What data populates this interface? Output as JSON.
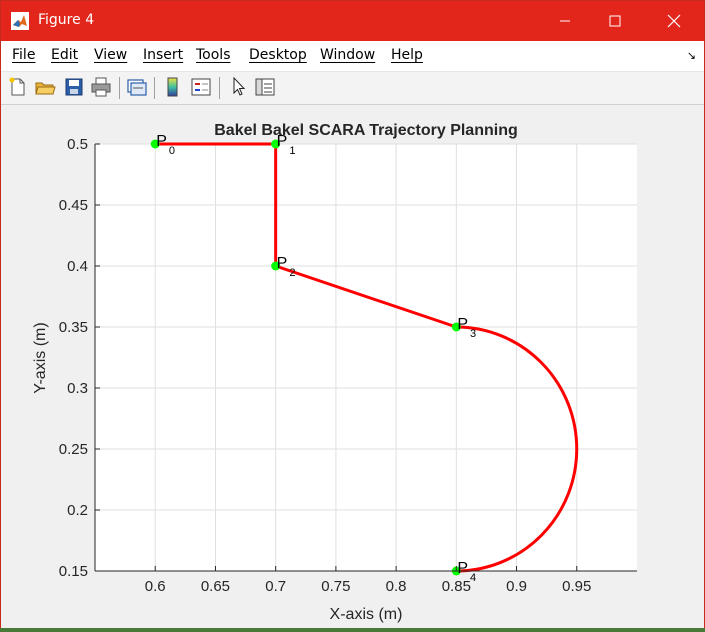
{
  "window": {
    "title": "Figure 4",
    "controls": [
      "minimize",
      "maximize",
      "close"
    ]
  },
  "menu": {
    "items": [
      {
        "label": "File"
      },
      {
        "label": "Edit"
      },
      {
        "label": "View"
      },
      {
        "label": "Insert"
      },
      {
        "label": "Tools"
      },
      {
        "label": "Desktop"
      },
      {
        "label": "Window"
      },
      {
        "label": "Help"
      }
    ]
  },
  "toolbar": {
    "icons": [
      "new-figure-icon",
      "open-file-icon",
      "save-icon",
      "print-icon",
      "link-plot-icon",
      "colorbar-icon",
      "legend-icon",
      "edit-plot-icon",
      "property-inspector-icon"
    ]
  },
  "colors": {
    "titlebar": "#e3261c",
    "trajectory": "#ff0000",
    "waypoint": "#00ff00"
  },
  "chart_data": {
    "type": "line",
    "title": "Bakel Bakel SCARA Trajectory Planning",
    "xlabel": "X-axis (m)",
    "ylabel": "Y-axis (m)",
    "xlim": [
      0.55,
      1.0
    ],
    "ylim": [
      0.15,
      0.5
    ],
    "xticks": [
      0.6,
      0.65,
      0.7,
      0.75,
      0.8,
      0.85,
      0.9,
      0.95
    ],
    "yticks": [
      0.15,
      0.2,
      0.25,
      0.3,
      0.35,
      0.4,
      0.45,
      0.5
    ],
    "xtick_labels": [
      "0.6",
      "0.65",
      "0.7",
      "0.75",
      "0.8",
      "0.85",
      "0.9",
      "0.95"
    ],
    "ytick_labels": [
      "0.15",
      "0.2",
      "0.25",
      "0.3",
      "0.35",
      "0.4",
      "0.45",
      "0.5"
    ],
    "grid": true,
    "waypoints": [
      {
        "label": "P",
        "sub": "0",
        "x": 0.6,
        "y": 0.5
      },
      {
        "label": "P",
        "sub": "1",
        "x": 0.7,
        "y": 0.5
      },
      {
        "label": "P",
        "sub": "2",
        "x": 0.7,
        "y": 0.4
      },
      {
        "label": "P",
        "sub": "3",
        "x": 0.85,
        "y": 0.35
      },
      {
        "label": "P",
        "sub": "4",
        "x": 0.85,
        "y": 0.15
      }
    ],
    "segments": [
      {
        "type": "line",
        "from": 0,
        "to": 1
      },
      {
        "type": "line",
        "from": 1,
        "to": 2
      },
      {
        "type": "line",
        "from": 2,
        "to": 3
      },
      {
        "type": "arc",
        "from": 3,
        "to": 4,
        "center": [
          0.85,
          0.25
        ],
        "radius": 0.1,
        "direction": "clockwise-right"
      }
    ]
  }
}
